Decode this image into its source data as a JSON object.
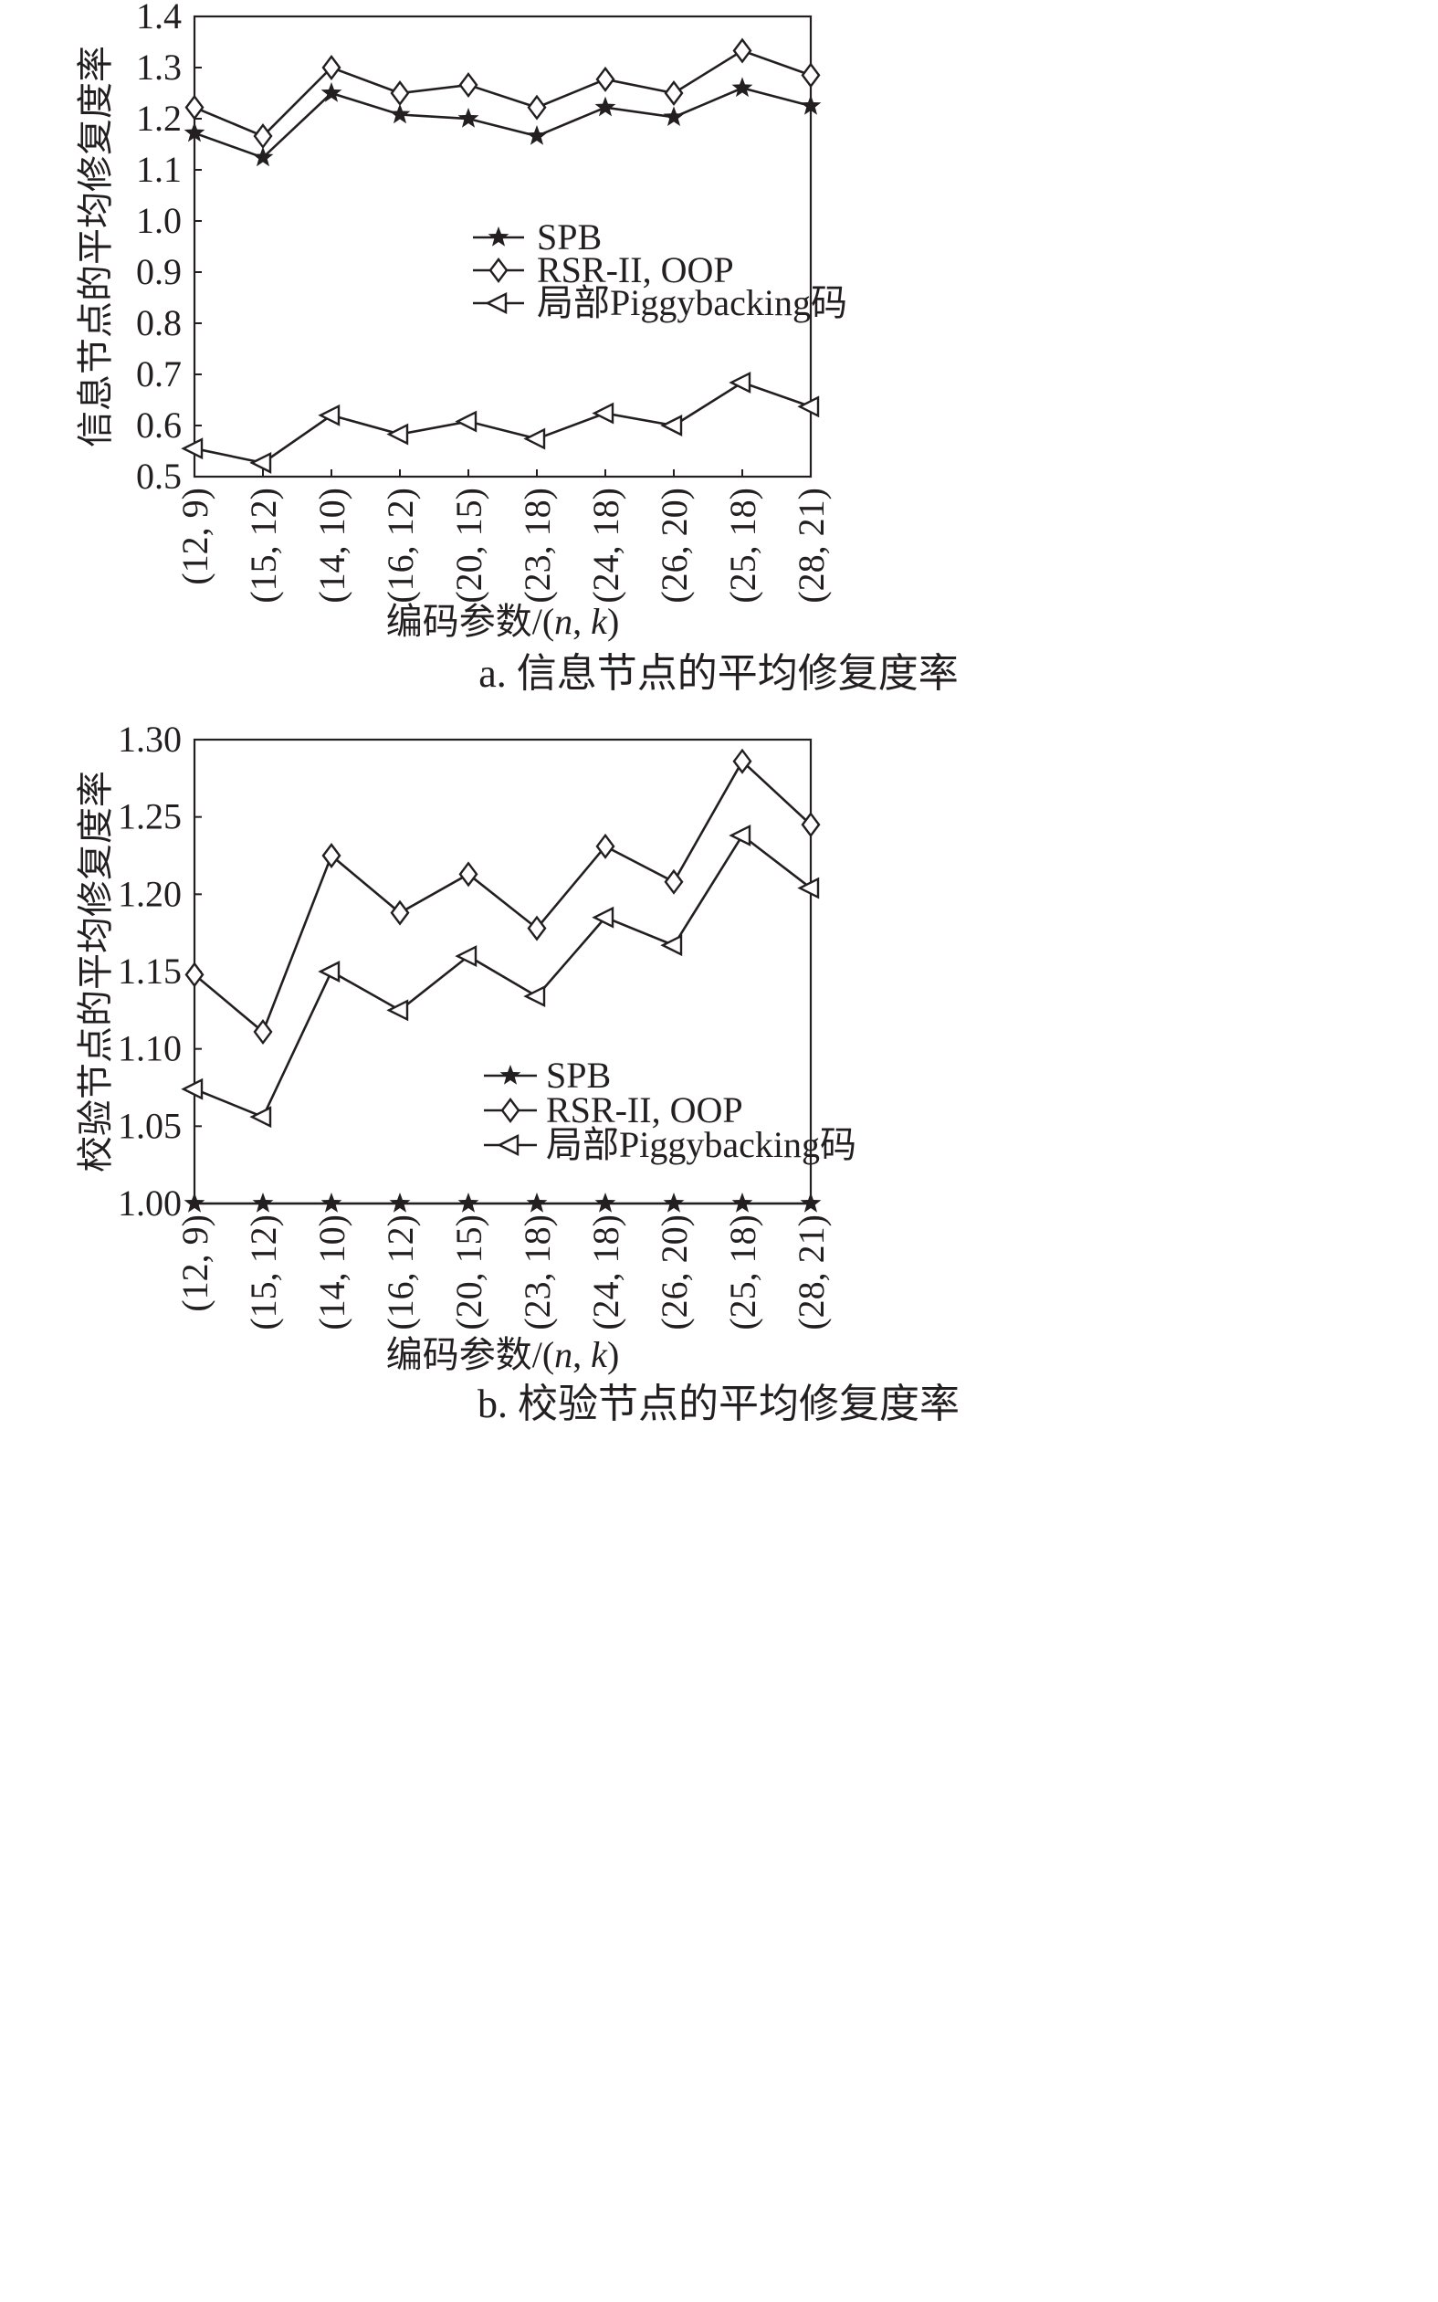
{
  "chart_data": [
    {
      "type": "line",
      "caption": "a. 信息节点的平均修复度率",
      "xlabel": "编码参数/(n, k)",
      "xlabel_parts": {
        "prefix": "编码参数/(",
        "n": "n",
        "sep": ", ",
        "k": "k",
        "suffix": ")"
      },
      "ylabel": "信息节点的平均修复度率",
      "categories": [
        "(12, 9)",
        "(15, 12)",
        "(14, 10)",
        "(16, 12)",
        "(20, 15)",
        "(23, 18)",
        "(24, 18)",
        "(26, 20)",
        "(25, 18)",
        "(28, 21)"
      ],
      "ylim": [
        0.5,
        1.4
      ],
      "yticks": [
        "0.5",
        "0.6",
        "0.7",
        "0.8",
        "0.9",
        "1.0",
        "1.1",
        "1.2",
        "1.3",
        "1.4"
      ],
      "grid": false,
      "legend_position": "center-right",
      "series": [
        {
          "name": "SPB",
          "marker": "star",
          "values": [
            1.172,
            1.124,
            1.25,
            1.208,
            1.2,
            1.166,
            1.222,
            1.203,
            1.26,
            1.225
          ]
        },
        {
          "name": "RSR-II, OOP",
          "marker": "diamond",
          "values": [
            1.222,
            1.166,
            1.3,
            1.25,
            1.266,
            1.222,
            1.277,
            1.25,
            1.333,
            1.285
          ]
        },
        {
          "name": "局部Piggybacking码",
          "marker": "triangle-left",
          "values": [
            0.555,
            0.527,
            0.62,
            0.583,
            0.608,
            0.574,
            0.624,
            0.6,
            0.684,
            0.637
          ]
        }
      ]
    },
    {
      "type": "line",
      "caption": "b. 校验节点的平均修复度率",
      "xlabel": "编码参数/(n, k)",
      "xlabel_parts": {
        "prefix": "编码参数/(",
        "n": "n",
        "sep": ", ",
        "k": "k",
        "suffix": ")"
      },
      "ylabel": "校验节点的平均修复度率",
      "categories": [
        "(12, 9)",
        "(15, 12)",
        "(14, 10)",
        "(16, 12)",
        "(20, 15)",
        "(23, 18)",
        "(24, 18)",
        "(26, 20)",
        "(25, 18)",
        "(28, 21)"
      ],
      "ylim": [
        1.0,
        1.3
      ],
      "yticks": [
        "1.00",
        "1.05",
        "1.10",
        "1.15",
        "1.20",
        "1.25",
        "1.30"
      ],
      "grid": false,
      "legend_position": "lower-right",
      "series": [
        {
          "name": "SPB",
          "marker": "star",
          "values": [
            1.0,
            1.0,
            1.0,
            1.0,
            1.0,
            1.0,
            1.0,
            1.0,
            1.0,
            1.0
          ]
        },
        {
          "name": "RSR-II, OOP",
          "marker": "diamond",
          "values": [
            1.148,
            1.111,
            1.225,
            1.188,
            1.213,
            1.178,
            1.231,
            1.208,
            1.286,
            1.245
          ]
        },
        {
          "name": "局部Piggybacking码",
          "marker": "triangle-left",
          "values": [
            1.074,
            1.056,
            1.15,
            1.125,
            1.16,
            1.134,
            1.185,
            1.167,
            1.238,
            1.204
          ]
        }
      ]
    }
  ]
}
